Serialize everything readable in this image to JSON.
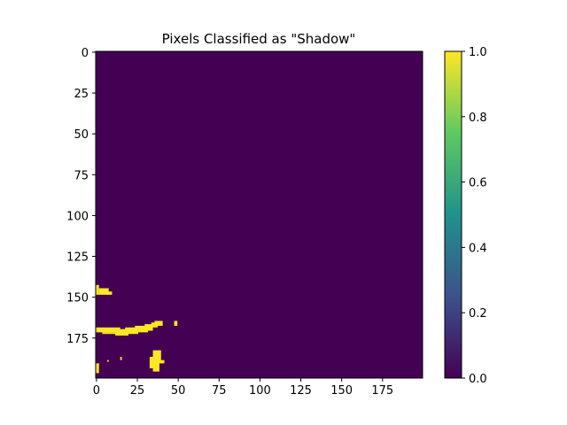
{
  "chart_data": {
    "type": "heatmap",
    "title": "Pixels Classified as \"Shadow\"",
    "xlabel": "",
    "ylabel": "",
    "grid_size": [
      200,
      200
    ],
    "xlim": [
      0,
      199
    ],
    "ylim": [
      199,
      0
    ],
    "x_ticks": [
      0,
      25,
      50,
      75,
      100,
      125,
      150,
      175
    ],
    "y_ticks": [
      0,
      25,
      50,
      75,
      100,
      125,
      150,
      175
    ],
    "value_range": [
      0.0,
      1.0
    ],
    "colormap": "viridis",
    "background_value": 0,
    "background_color": "#440154",
    "shadow_color": "#fde725",
    "colorbar": {
      "ticks": [
        0.0,
        0.2,
        0.4,
        0.6,
        0.8,
        1.0
      ],
      "tick_labels": [
        "0.0",
        "0.2",
        "0.4",
        "0.6",
        "0.8",
        "1.0"
      ],
      "gradient": [
        "#440154",
        "#3b528b",
        "#21918c",
        "#5ec962",
        "#fde725"
      ]
    },
    "shadow_regions": [
      {
        "x": 0,
        "y": 143,
        "w": 2,
        "h": 6
      },
      {
        "x": 2,
        "y": 145,
        "w": 6,
        "h": 4
      },
      {
        "x": 7,
        "y": 147,
        "w": 3,
        "h": 2
      },
      {
        "x": 0,
        "y": 169,
        "w": 15,
        "h": 3
      },
      {
        "x": 4,
        "y": 172,
        "w": 10,
        "h": 1
      },
      {
        "x": 12,
        "y": 170,
        "w": 8,
        "h": 4
      },
      {
        "x": 18,
        "y": 169,
        "w": 8,
        "h": 4
      },
      {
        "x": 24,
        "y": 168,
        "w": 8,
        "h": 4
      },
      {
        "x": 30,
        "y": 167,
        "w": 5,
        "h": 4
      },
      {
        "x": 34,
        "y": 166,
        "w": 4,
        "h": 3
      },
      {
        "x": 36,
        "y": 165,
        "w": 5,
        "h": 3
      },
      {
        "x": 48,
        "y": 165,
        "w": 2,
        "h": 3
      },
      {
        "x": 35,
        "y": 183,
        "w": 4,
        "h": 13
      },
      {
        "x": 33,
        "y": 187,
        "w": 4,
        "h": 7
      },
      {
        "x": 38,
        "y": 183,
        "w": 2,
        "h": 8
      },
      {
        "x": 39,
        "y": 189,
        "w": 3,
        "h": 2
      },
      {
        "x": 0,
        "y": 191,
        "w": 2,
        "h": 6
      },
      {
        "x": 1,
        "y": 191,
        "w": 1,
        "h": 2
      },
      {
        "x": 7,
        "y": 189,
        "w": 1,
        "h": 1
      },
      {
        "x": 15,
        "y": 187,
        "w": 1,
        "h": 2
      }
    ]
  }
}
